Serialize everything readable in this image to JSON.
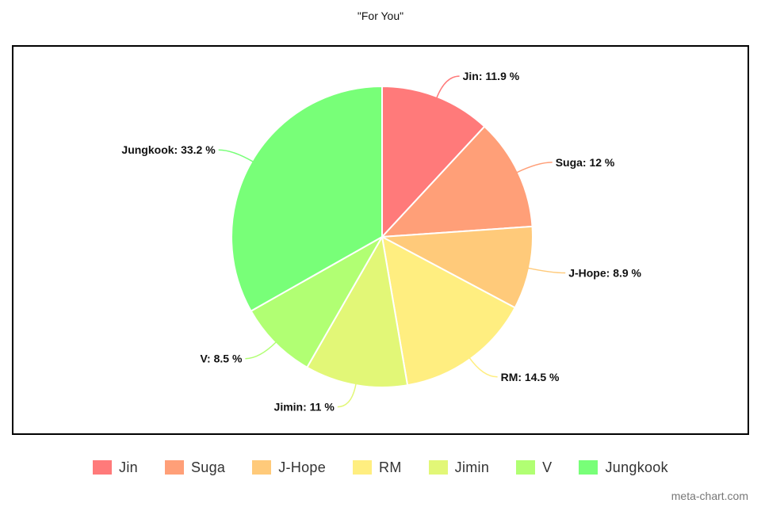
{
  "chart_data": {
    "type": "pie",
    "title": "\"For You\"",
    "label_suffix": " %",
    "slices": [
      {
        "name": "Jin",
        "value": 11.9,
        "color": "#ff7a7a"
      },
      {
        "name": "Suga",
        "value": 12,
        "color": "#ff9f78"
      },
      {
        "name": "J-Hope",
        "value": 8.9,
        "color": "#ffca7a"
      },
      {
        "name": "RM",
        "value": 14.5,
        "color": "#ffee80"
      },
      {
        "name": "Jimin",
        "value": 11,
        "color": "#e2f777"
      },
      {
        "name": "V",
        "value": 8.5,
        "color": "#b1ff73"
      },
      {
        "name": "Jungkook",
        "value": 33.2,
        "color": "#78ff78"
      }
    ],
    "legend": {
      "position": "bottom"
    }
  },
  "watermark": "meta-chart.com"
}
